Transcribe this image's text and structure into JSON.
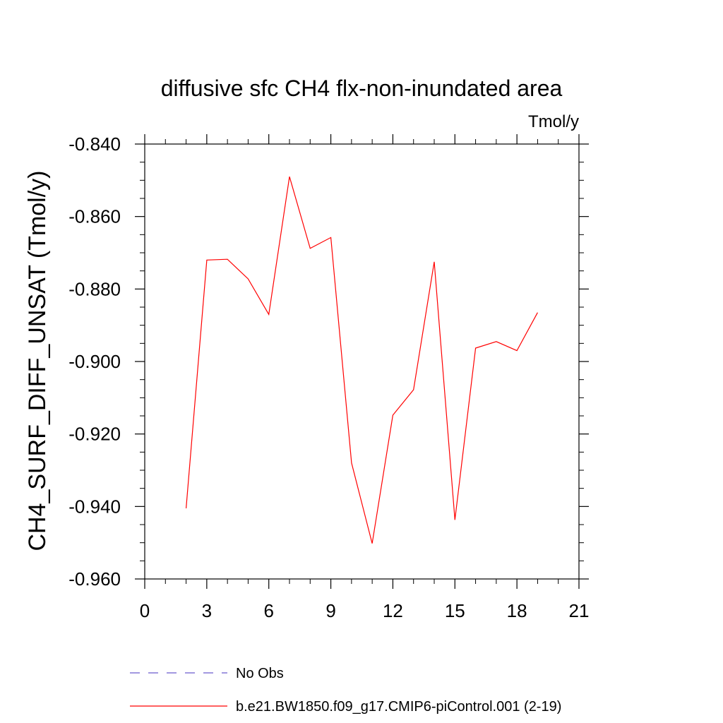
{
  "chart_data": {
    "type": "line",
    "title": "diffusive sfc CH4 flx-non-inundated area",
    "units_label": "Tmol/y",
    "xlabel": "",
    "ylabel": "CH4_SURF_DIFF_UNSAT  (Tmol/y)",
    "xlim": [
      0,
      21
    ],
    "ylim": [
      -0.96,
      -0.84
    ],
    "x_ticks": [
      0,
      3,
      6,
      9,
      12,
      15,
      18,
      21
    ],
    "x_tick_labels": [
      "0",
      "3",
      "6",
      "9",
      "12",
      "15",
      "18",
      "21"
    ],
    "y_ticks": [
      -0.96,
      -0.94,
      -0.92,
      -0.9,
      -0.88,
      -0.86,
      -0.84
    ],
    "y_tick_labels": [
      "-0.960",
      "-0.940",
      "-0.920",
      "-0.900",
      "-0.880",
      "-0.860",
      "-0.840"
    ],
    "grid": false,
    "legend_position": "bottom",
    "series": [
      {
        "name": "No Obs",
        "color": "#6a5acd",
        "dash": "dashed",
        "x": [],
        "y": []
      },
      {
        "name": "b.e21.BW1850.f09_g17.CMIP6-piControl.001 (2-19)",
        "color": "#ff0000",
        "dash": "solid",
        "x": [
          2,
          3,
          4,
          5,
          6,
          7,
          8,
          9,
          10,
          11,
          12,
          13,
          14,
          15,
          16,
          17,
          18,
          19
        ],
        "y": [
          -0.9405,
          -0.872,
          -0.8718,
          -0.8772,
          -0.887,
          -0.849,
          -0.8688,
          -0.8658,
          -0.928,
          -0.9502,
          -0.9148,
          -0.9078,
          -0.8725,
          -0.9437,
          -0.8963,
          -0.8945,
          -0.897,
          -0.8865
        ]
      }
    ]
  }
}
